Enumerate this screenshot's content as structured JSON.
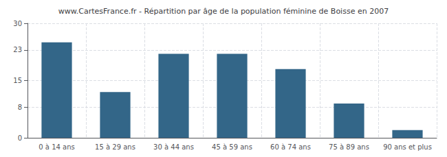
{
  "chart_data": {
    "type": "bar",
    "title": "www.CartesFrance.fr - Répartition par âge de la population féminine de Boisse en 2007",
    "categories": [
      "0 à 14 ans",
      "15 à 29 ans",
      "30 à 44 ans",
      "45 à 59 ans",
      "60 à 74 ans",
      "75 à 89 ans",
      "90 ans et plus"
    ],
    "values": [
      25,
      12,
      22,
      22,
      18,
      9,
      2
    ],
    "color": "#336688",
    "ylim": [
      0,
      30
    ],
    "yticks": [
      0,
      8,
      15,
      23,
      30
    ],
    "grid": true
  }
}
